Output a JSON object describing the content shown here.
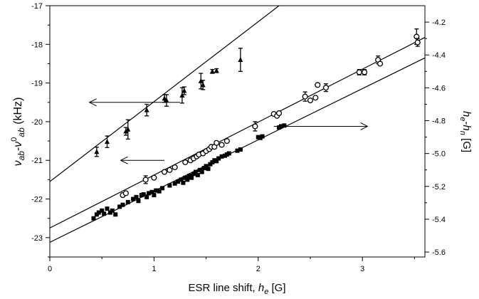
{
  "chart_data": {
    "type": "scatter",
    "xlabel": {
      "main": "ESR line shift, ",
      "sym": "h",
      "sub": "e",
      "unit": " [G]"
    },
    "ylabel_left": {
      "nu": "ν",
      "ab1": "ab",
      "minus": "-",
      "nu2": "ν",
      "sup0": "0",
      "ab2": "ab",
      "unit": " (kHz)"
    },
    "ylabel_right": {
      "h1": "h",
      "e": "e",
      "minus": "-",
      "h2": "h",
      "n": "n",
      "unit": " [G]"
    },
    "x_ticks": [
      "0",
      "1",
      "2",
      "3"
    ],
    "y_left_ticks": [
      "-17",
      "-18",
      "-19",
      "-20",
      "-21",
      "-22",
      "-23"
    ],
    "y_right_ticks": [
      "-4.2",
      "-4.4",
      "-4.6",
      "-4.8",
      "-5.0",
      "-5.2",
      "-5.4",
      "-5.6"
    ],
    "xlim": [
      0,
      3.6
    ],
    "ylim_left": [
      -23.5,
      -17
    ],
    "ylim_right": [
      -5.63,
      -4.1
    ],
    "series": [
      {
        "marker": "triangle",
        "axis": "left",
        "errorbars": true,
        "points": [
          {
            "x": 0.45,
            "y": -20.78,
            "err": 0.12
          },
          {
            "x": 0.55,
            "y": -20.52,
            "err": 0.15
          },
          {
            "x": 0.73,
            "y": -20.25,
            "err": 0.1
          },
          {
            "x": 0.75,
            "y": -20.2,
            "err": 0.25
          },
          {
            "x": 0.93,
            "y": -19.7,
            "err": 0.15
          },
          {
            "x": 1.1,
            "y": -19.4,
            "err": 0.1
          },
          {
            "x": 1.12,
            "y": -19.45,
            "err": 0.15
          },
          {
            "x": 1.27,
            "y": -19.32,
            "err": 0.2
          },
          {
            "x": 1.29,
            "y": -19.2,
            "err": 0.1
          },
          {
            "x": 1.45,
            "y": -18.95,
            "err": 0.2
          },
          {
            "x": 1.47,
            "y": -19.05,
            "err": 0.12
          },
          {
            "x": 1.56,
            "y": -18.7,
            "err": 0.05
          },
          {
            "x": 1.6,
            "y": -18.68,
            "err": 0.05
          },
          {
            "x": 1.83,
            "y": -18.4,
            "err": 0.3
          }
        ]
      },
      {
        "marker": "circle",
        "axis": "left",
        "errorbars": true,
        "points": [
          {
            "x": 0.7,
            "y": -21.9
          },
          {
            "x": 0.73,
            "y": -21.85
          },
          {
            "x": 0.92,
            "y": -21.5,
            "err": 0.1
          },
          {
            "x": 1.0,
            "y": -21.45
          },
          {
            "x": 1.1,
            "y": -21.3
          },
          {
            "x": 1.15,
            "y": -21.25
          },
          {
            "x": 1.2,
            "y": -21.18
          },
          {
            "x": 1.3,
            "y": -21.05
          },
          {
            "x": 1.35,
            "y": -21.0
          },
          {
            "x": 1.38,
            "y": -20.95
          },
          {
            "x": 1.41,
            "y": -20.9
          },
          {
            "x": 1.43,
            "y": -20.85
          },
          {
            "x": 1.47,
            "y": -20.82
          },
          {
            "x": 1.5,
            "y": -20.76
          },
          {
            "x": 1.53,
            "y": -20.71
          },
          {
            "x": 1.55,
            "y": -20.65
          },
          {
            "x": 1.58,
            "y": -20.65
          },
          {
            "x": 1.6,
            "y": -20.55
          },
          {
            "x": 1.65,
            "y": -20.6
          },
          {
            "x": 1.7,
            "y": -20.5
          },
          {
            "x": 1.97,
            "y": -20.12,
            "err": 0.12
          },
          {
            "x": 2.15,
            "y": -19.8
          },
          {
            "x": 2.18,
            "y": -19.85
          },
          {
            "x": 2.2,
            "y": -19.78
          },
          {
            "x": 2.45,
            "y": -19.35,
            "err": 0.12
          },
          {
            "x": 2.5,
            "y": -19.45
          },
          {
            "x": 2.55,
            "y": -19.38
          },
          {
            "x": 2.57,
            "y": -19.05
          },
          {
            "x": 2.65,
            "y": -19.12,
            "err": 0.1
          },
          {
            "x": 2.97,
            "y": -18.72,
            "err": 0.07
          },
          {
            "x": 3.02,
            "y": -18.72,
            "err": 0.07
          },
          {
            "x": 3.15,
            "y": -18.4,
            "err": 0.1
          },
          {
            "x": 3.17,
            "y": -18.5
          },
          {
            "x": 3.52,
            "y": -17.8,
            "err": 0.2
          },
          {
            "x": 3.53,
            "y": -17.95,
            "err": 0.1
          }
        ]
      },
      {
        "marker": "square",
        "axis": "left",
        "errorbars": false,
        "points": [
          {
            "x": 0.42,
            "y": -22.5
          },
          {
            "x": 0.45,
            "y": -22.4
          },
          {
            "x": 0.47,
            "y": -22.35
          },
          {
            "x": 0.5,
            "y": -22.3
          },
          {
            "x": 0.52,
            "y": -22.38
          },
          {
            "x": 0.55,
            "y": -22.25
          },
          {
            "x": 0.58,
            "y": -22.35
          },
          {
            "x": 0.6,
            "y": -22.3
          },
          {
            "x": 0.63,
            "y": -22.4
          },
          {
            "x": 0.67,
            "y": -22.2
          },
          {
            "x": 0.7,
            "y": -22.15
          },
          {
            "x": 0.75,
            "y": -22.08
          },
          {
            "x": 0.8,
            "y": -22.0
          },
          {
            "x": 0.83,
            "y": -21.95
          },
          {
            "x": 0.85,
            "y": -22.05
          },
          {
            "x": 0.88,
            "y": -21.9
          },
          {
            "x": 0.9,
            "y": -21.88
          },
          {
            "x": 0.93,
            "y": -21.95
          },
          {
            "x": 0.95,
            "y": -21.85
          },
          {
            "x": 0.98,
            "y": -21.82
          },
          {
            "x": 1.0,
            "y": -21.9
          },
          {
            "x": 1.02,
            "y": -21.78
          },
          {
            "x": 1.05,
            "y": -21.8
          },
          {
            "x": 1.08,
            "y": -21.72
          },
          {
            "x": 1.15,
            "y": -21.65
          },
          {
            "x": 1.2,
            "y": -21.6
          },
          {
            "x": 1.23,
            "y": -21.55
          },
          {
            "x": 1.26,
            "y": -21.5
          },
          {
            "x": 1.28,
            "y": -21.58
          },
          {
            "x": 1.3,
            "y": -21.45
          },
          {
            "x": 1.32,
            "y": -21.5
          },
          {
            "x": 1.34,
            "y": -21.4
          },
          {
            "x": 1.36,
            "y": -21.45
          },
          {
            "x": 1.38,
            "y": -21.35
          },
          {
            "x": 1.4,
            "y": -21.3
          },
          {
            "x": 1.42,
            "y": -21.38
          },
          {
            "x": 1.44,
            "y": -21.25
          },
          {
            "x": 1.46,
            "y": -21.3
          },
          {
            "x": 1.48,
            "y": -21.2
          },
          {
            "x": 1.5,
            "y": -21.15
          },
          {
            "x": 1.52,
            "y": -21.22
          },
          {
            "x": 1.54,
            "y": -21.1
          },
          {
            "x": 1.56,
            "y": -21.05
          },
          {
            "x": 1.58,
            "y": -21.0
          },
          {
            "x": 1.6,
            "y": -21.02
          },
          {
            "x": 1.62,
            "y": -20.95
          },
          {
            "x": 1.65,
            "y": -20.9
          },
          {
            "x": 1.68,
            "y": -20.88
          },
          {
            "x": 1.7,
            "y": -20.85
          },
          {
            "x": 1.72,
            "y": -20.82
          },
          {
            "x": 1.8,
            "y": -20.75
          },
          {
            "x": 1.83,
            "y": -20.72
          },
          {
            "x": 2.0,
            "y": -20.4
          },
          {
            "x": 2.02,
            "y": -20.42
          },
          {
            "x": 2.04,
            "y": -20.38
          },
          {
            "x": 2.2,
            "y": -20.15
          },
          {
            "x": 2.22,
            "y": -20.12
          },
          {
            "x": 2.25,
            "y": -20.1
          }
        ]
      }
    ],
    "fit_lines": [
      {
        "x1": 0,
        "y1": -21.55,
        "x2": 2.2,
        "y2": -17.0
      },
      {
        "x1": 0,
        "y1": -22.75,
        "x2": 3.6,
        "y2": -17.82
      },
      {
        "x1": 0,
        "y1": -23.12,
        "x2": 3.6,
        "y2": -18.35
      }
    ],
    "arrows": [
      {
        "x1": 1.25,
        "y1": -19.5,
        "x2": 0.38,
        "y2": -19.5
      },
      {
        "x1": 1.1,
        "y1": -21.0,
        "x2": 0.68,
        "y2": -21.0
      },
      {
        "x1": 2.15,
        "y1": -20.12,
        "x2": 3.05,
        "y2": -20.12
      }
    ]
  }
}
